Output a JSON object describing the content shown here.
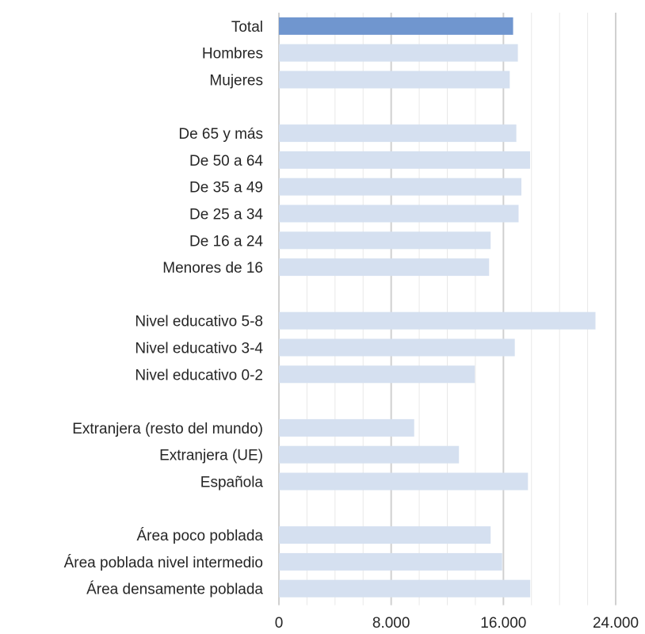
{
  "chart_data": {
    "type": "bar",
    "orientation": "horizontal",
    "categories": [
      "Total",
      "Hombres",
      "Mujeres",
      "",
      "De 65 y más",
      "De 50 a 64",
      "De 35 a 49",
      "De 25 a 34",
      "De 16 a 24",
      "Menores de 16",
      "",
      "Nivel educativo 5-8",
      "Nivel educativo 3-4",
      "Nivel educativo 0-2",
      "",
      "Extranjera (resto del mundo)",
      "Extranjera (UE)",
      "Española",
      "",
      "Área poco poblada",
      "Área poblada nivel intermedio",
      "Área densamente poblada"
    ],
    "values": [
      16690,
      17030,
      16450,
      null,
      16920,
      17900,
      17280,
      17080,
      15090,
      14980,
      null,
      22560,
      16810,
      13960,
      null,
      9640,
      12830,
      17750,
      null,
      15090,
      15910,
      17910
    ],
    "highlight_index": 0,
    "xlim": [
      0,
      24000
    ],
    "xticks": [
      0,
      8000,
      16000,
      24000
    ],
    "xtick_labels": [
      "0",
      "8.000",
      "16.000",
      "24.000"
    ],
    "minor_gridline_step": 2000,
    "title": "",
    "xlabel": "",
    "ylabel": "",
    "grid": true,
    "legend": "none",
    "colors": {
      "highlight_bar": "#7096cf",
      "bar": "#d5e0f0",
      "text": "#262626",
      "major_grid": "#d0d0d0",
      "minor_grid": "#e8e8e8"
    }
  }
}
